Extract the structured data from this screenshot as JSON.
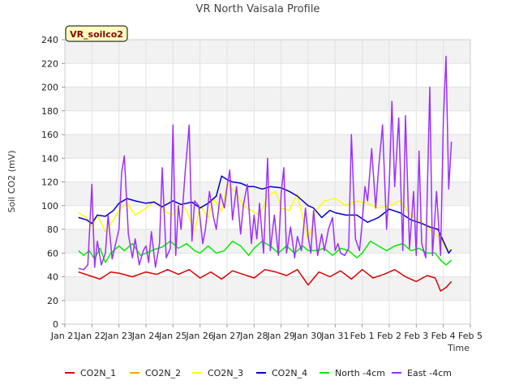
{
  "chart_data": {
    "type": "line",
    "title": "VR North Vaisala Profile",
    "badge": "VR_soilco2",
    "xlabel": "Time",
    "ylabel": "Soil CO2 (mV)",
    "ylim": [
      0,
      240
    ],
    "yticks": [
      0,
      20,
      40,
      60,
      80,
      100,
      120,
      140,
      160,
      180,
      200,
      220,
      240
    ],
    "xlim": [
      0,
      15
    ],
    "xticks": [
      {
        "x": 0,
        "label": "Jan 21"
      },
      {
        "x": 1,
        "label": "Jan 22"
      },
      {
        "x": 2,
        "label": "Jan 23"
      },
      {
        "x": 3,
        "label": "Jan 24"
      },
      {
        "x": 4,
        "label": "Jan 25"
      },
      {
        "x": 5,
        "label": "Jan 26"
      },
      {
        "x": 6,
        "label": "Jan 27"
      },
      {
        "x": 7,
        "label": "Jan 28"
      },
      {
        "x": 8,
        "label": "Jan 29"
      },
      {
        "x": 9,
        "label": "Jan 30"
      },
      {
        "x": 10,
        "label": "Jan 31"
      },
      {
        "x": 11,
        "label": "Feb 1"
      },
      {
        "x": 12,
        "label": "Feb 2"
      },
      {
        "x": 13,
        "label": "Feb 3"
      },
      {
        "x": 14,
        "label": "Feb 4"
      },
      {
        "x": 15,
        "label": "Feb 5"
      }
    ],
    "grid": true,
    "legend_position": "bottom",
    "series": [
      {
        "name": "CO2N_1",
        "color": "#dd0000",
        "x": [
          0.5,
          0.9,
          1.3,
          1.7,
          2.0,
          2.5,
          3.0,
          3.4,
          3.8,
          4.2,
          4.6,
          5.0,
          5.4,
          5.8,
          6.2,
          6.6,
          7.0,
          7.4,
          7.8,
          8.2,
          8.6,
          9.0,
          9.4,
          9.8,
          10.2,
          10.6,
          11.0,
          11.4,
          11.8,
          12.2,
          12.6,
          13.0,
          13.4,
          13.7,
          13.9,
          14.1,
          14.3
        ],
        "y": [
          44,
          41,
          38,
          44,
          43,
          40,
          44,
          42,
          46,
          42,
          46,
          39,
          44,
          38,
          45,
          42,
          39,
          46,
          44,
          41,
          46,
          33,
          44,
          40,
          45,
          38,
          46,
          39,
          42,
          46,
          40,
          36,
          41,
          39,
          28,
          31,
          36
        ]
      },
      {
        "name": "CO2N_2",
        "color": "#ffa500",
        "x": [],
        "y": []
      },
      {
        "name": "CO2N_3",
        "color": "#ffff00",
        "x": [
          0.5,
          0.8,
          1.0,
          1.2,
          1.5,
          1.8,
          2.0,
          2.3,
          2.6,
          3.0,
          3.3,
          3.7,
          4.0,
          4.3,
          4.5,
          4.8,
          5.0,
          5.3,
          5.5,
          5.8,
          6.0,
          6.3,
          6.6,
          6.9,
          7.2,
          7.5,
          7.8,
          8.0,
          8.3,
          8.6,
          9.0,
          9.3,
          9.6,
          10.0,
          10.4,
          10.8,
          11.2,
          11.6,
          12.0,
          12.4,
          12.8,
          13.2,
          13.6,
          13.9,
          14.1,
          14.3
        ],
        "y": [
          94,
          90,
          82,
          92,
          78,
          88,
          96,
          102,
          92,
          98,
          104,
          95,
          92,
          102,
          96,
          78,
          100,
          90,
          106,
          95,
          118,
          112,
          100,
          96,
          92,
          108,
          112,
          98,
          96,
          110,
          70,
          96,
          104,
          106,
          100,
          104,
          102,
          98,
          100,
          104,
          92,
          86,
          78,
          72,
          64,
          62
        ]
      },
      {
        "name": "CO2N_4",
        "color": "#0000cc",
        "x": [
          0.5,
          0.8,
          1.0,
          1.2,
          1.5,
          1.8,
          2.0,
          2.3,
          2.6,
          3.0,
          3.3,
          3.6,
          4.0,
          4.3,
          4.7,
          5.0,
          5.3,
          5.6,
          5.8,
          6.0,
          6.2,
          6.5,
          6.8,
          7.0,
          7.3,
          7.6,
          8.0,
          8.3,
          8.6,
          9.0,
          9.2,
          9.5,
          9.8,
          10.0,
          10.4,
          10.8,
          11.2,
          11.6,
          12.0,
          12.4,
          12.8,
          13.2,
          13.5,
          13.8,
          14.0,
          14.2,
          14.3
        ],
        "y": [
          90,
          88,
          85,
          92,
          91,
          96,
          102,
          106,
          104,
          102,
          103,
          99,
          104,
          101,
          103,
          98,
          102,
          108,
          125,
          122,
          120,
          119,
          116,
          116,
          114,
          116,
          115,
          112,
          108,
          100,
          98,
          90,
          96,
          94,
          92,
          92,
          86,
          90,
          97,
          94,
          88,
          85,
          82,
          80,
          70,
          60,
          63
        ]
      },
      {
        "name": "North -4cm",
        "color": "#00ee00",
        "x": [
          0.5,
          0.7,
          0.9,
          1.1,
          1.3,
          1.5,
          1.7,
          2.0,
          2.2,
          2.5,
          2.8,
          3.0,
          3.3,
          3.6,
          3.9,
          4.2,
          4.5,
          4.8,
          5.0,
          5.3,
          5.6,
          5.9,
          6.2,
          6.5,
          6.8,
          7.0,
          7.3,
          7.6,
          7.9,
          8.2,
          8.5,
          8.8,
          9.0,
          9.3,
          9.6,
          9.9,
          10.2,
          10.5,
          10.8,
          11.0,
          11.3,
          11.6,
          11.9,
          12.2,
          12.5,
          12.8,
          13.1,
          13.4,
          13.7,
          13.9,
          14.1,
          14.3
        ],
        "y": [
          62,
          58,
          62,
          55,
          64,
          52,
          60,
          66,
          62,
          68,
          58,
          60,
          63,
          65,
          70,
          64,
          68,
          62,
          60,
          66,
          60,
          62,
          70,
          66,
          58,
          64,
          70,
          66,
          60,
          66,
          60,
          66,
          62,
          62,
          64,
          58,
          64,
          62,
          56,
          60,
          70,
          66,
          62,
          66,
          68,
          62,
          64,
          60,
          60,
          54,
          50,
          54
        ]
      },
      {
        "name": "East -4cm",
        "color": "#9b30ff",
        "x": [
          0.5,
          0.7,
          0.85,
          1.0,
          1.1,
          1.2,
          1.35,
          1.5,
          1.6,
          1.75,
          1.9,
          2.0,
          2.1,
          2.2,
          2.35,
          2.5,
          2.6,
          2.75,
          2.9,
          3.0,
          3.1,
          3.2,
          3.35,
          3.5,
          3.6,
          3.75,
          3.9,
          4.0,
          4.1,
          4.2,
          4.3,
          4.45,
          4.6,
          4.7,
          4.8,
          4.95,
          5.1,
          5.2,
          5.35,
          5.5,
          5.6,
          5.75,
          5.9,
          6.0,
          6.1,
          6.2,
          6.35,
          6.5,
          6.6,
          6.75,
          6.9,
          7.0,
          7.1,
          7.2,
          7.35,
          7.5,
          7.6,
          7.75,
          7.9,
          8.0,
          8.1,
          8.2,
          8.35,
          8.5,
          8.6,
          8.75,
          8.9,
          9.0,
          9.1,
          9.2,
          9.35,
          9.5,
          9.6,
          9.75,
          9.9,
          10.0,
          10.1,
          10.2,
          10.35,
          10.5,
          10.6,
          10.75,
          10.9,
          11.0,
          11.1,
          11.2,
          11.35,
          11.5,
          11.6,
          11.75,
          11.9,
          12.0,
          12.1,
          12.2,
          12.35,
          12.5,
          12.6,
          12.75,
          12.9,
          13.0,
          13.1,
          13.2,
          13.35,
          13.5,
          13.6,
          13.75,
          13.9,
          14.0,
          14.1,
          14.2,
          14.3
        ],
        "y": [
          47,
          46,
          50,
          118,
          48,
          70,
          50,
          60,
          92,
          55,
          70,
          80,
          128,
          142,
          76,
          56,
          72,
          50,
          62,
          66,
          52,
          78,
          48,
          68,
          132,
          56,
          64,
          168,
          58,
          100,
          80,
          128,
          168,
          70,
          104,
          100,
          68,
          80,
          112,
          90,
          80,
          110,
          98,
          116,
          130,
          88,
          116,
          76,
          100,
          118,
          68,
          92,
          72,
          102,
          60,
          140,
          62,
          92,
          58,
          110,
          132,
          60,
          82,
          56,
          74,
          62,
          98,
          74,
          60,
          96,
          58,
          76,
          62,
          80,
          90,
          62,
          68,
          60,
          58,
          64,
          160,
          72,
          62,
          86,
          116,
          104,
          148,
          98,
          130,
          168,
          80,
          118,
          188,
          116,
          174,
          62,
          176,
          64,
          112,
          58,
          146,
          68,
          56,
          200,
          58,
          112,
          58,
          172,
          226,
          114,
          154
        ]
      }
    ]
  }
}
